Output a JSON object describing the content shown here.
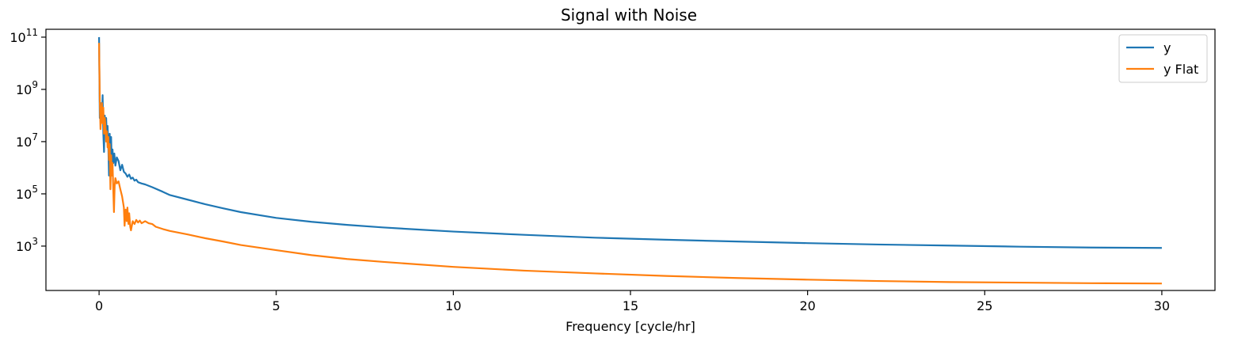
{
  "chart_data": {
    "type": "line",
    "title": "Signal with Noise",
    "xlabel": "Frequency [cycle/hr]",
    "ylabel": "",
    "y_scale": "log",
    "xlim": [
      -1.5,
      31.5
    ],
    "ylim": [
      20,
      200000000000
    ],
    "x_ticks": [
      0,
      5,
      10,
      15,
      20,
      25,
      30
    ],
    "x_tick_labels": [
      "0",
      "5",
      "10",
      "15",
      "20",
      "25",
      "30"
    ],
    "y_ticks": [
      1000,
      100000,
      10000000,
      1000000000,
      100000000000
    ],
    "y_tick_labels": [
      {
        "base": "10",
        "exp": "3"
      },
      {
        "base": "10",
        "exp": "5"
      },
      {
        "base": "10",
        "exp": "7"
      },
      {
        "base": "10",
        "exp": "9"
      },
      {
        "base": "10",
        "exp": "11"
      }
    ],
    "grid": false,
    "legend_position": "top-right",
    "series": [
      {
        "name": "y",
        "color": "#1f77b4",
        "points": [
          [
            0,
            100000000000
          ],
          [
            0.02,
            80000000
          ],
          [
            0.05,
            300000000
          ],
          [
            0.08,
            70000000
          ],
          [
            0.1,
            600000000
          ],
          [
            0.12,
            20000000
          ],
          [
            0.14,
            4000000
          ],
          [
            0.16,
            100000000
          ],
          [
            0.18,
            30000000
          ],
          [
            0.2,
            80000000
          ],
          [
            0.22,
            15000000
          ],
          [
            0.24,
            40000000
          ],
          [
            0.26,
            8000000
          ],
          [
            0.28,
            500000
          ],
          [
            0.3,
            20000000
          ],
          [
            0.32,
            3000000
          ],
          [
            0.34,
            15000000
          ],
          [
            0.36,
            1000000
          ],
          [
            0.38,
            5000000
          ],
          [
            0.4,
            1500000
          ],
          [
            0.43,
            3500000
          ],
          [
            0.46,
            1200000
          ],
          [
            0.5,
            2500000
          ],
          [
            0.55,
            1800000
          ],
          [
            0.6,
            800000
          ],
          [
            0.65,
            1300000
          ],
          [
            0.7,
            700000
          ],
          [
            0.75,
            600000
          ],
          [
            0.8,
            450000
          ],
          [
            0.85,
            550000
          ],
          [
            0.9,
            380000
          ],
          [
            0.95,
            420000
          ],
          [
            1.0,
            320000
          ],
          [
            1.05,
            350000
          ],
          [
            1.1,
            280000
          ],
          [
            1.2,
            250000
          ],
          [
            1.3,
            230000
          ],
          [
            1.5,
            180000
          ],
          [
            1.8,
            120000
          ],
          [
            2.0,
            90000
          ],
          [
            2.5,
            60000
          ],
          [
            3.0,
            40000
          ],
          [
            3.5,
            28000
          ],
          [
            4.0,
            20000
          ],
          [
            5.0,
            12000
          ],
          [
            6.0,
            8500
          ],
          [
            7.0,
            6500
          ],
          [
            8.0,
            5200
          ],
          [
            9.0,
            4300
          ],
          [
            10.0,
            3600
          ],
          [
            12.0,
            2700
          ],
          [
            14.0,
            2100
          ],
          [
            16.0,
            1750
          ],
          [
            18.0,
            1500
          ],
          [
            20.0,
            1300
          ],
          [
            22.0,
            1150
          ],
          [
            24.0,
            1050
          ],
          [
            26.0,
            950
          ],
          [
            28.0,
            880
          ],
          [
            30.0,
            850
          ]
        ]
      },
      {
        "name": "y Flat",
        "color": "#ff7f0e",
        "points": [
          [
            0,
            60000000000
          ],
          [
            0.02,
            400000000
          ],
          [
            0.04,
            30000000
          ],
          [
            0.06,
            100000000
          ],
          [
            0.08,
            300000000
          ],
          [
            0.1,
            50000000
          ],
          [
            0.12,
            200000000
          ],
          [
            0.14,
            20000000
          ],
          [
            0.16,
            80000000
          ],
          [
            0.18,
            40000000
          ],
          [
            0.2,
            10000000
          ],
          [
            0.22,
            25000000
          ],
          [
            0.24,
            6000000
          ],
          [
            0.26,
            15000000
          ],
          [
            0.28,
            2000000
          ],
          [
            0.3,
            8000000
          ],
          [
            0.32,
            150000
          ],
          [
            0.34,
            3000000
          ],
          [
            0.36,
            500000
          ],
          [
            0.38,
            1500000
          ],
          [
            0.4,
            150000
          ],
          [
            0.42,
            20000
          ],
          [
            0.44,
            200000
          ],
          [
            0.46,
            400000
          ],
          [
            0.5,
            250000
          ],
          [
            0.55,
            300000
          ],
          [
            0.6,
            150000
          ],
          [
            0.65,
            80000
          ],
          [
            0.7,
            30000
          ],
          [
            0.72,
            6000
          ],
          [
            0.75,
            25000
          ],
          [
            0.78,
            9000
          ],
          [
            0.8,
            30000
          ],
          [
            0.83,
            7000
          ],
          [
            0.85,
            18000
          ],
          [
            0.88,
            5500
          ],
          [
            0.9,
            4000
          ],
          [
            0.95,
            9000
          ],
          [
            1.0,
            7000
          ],
          [
            1.05,
            10000
          ],
          [
            1.1,
            8000
          ],
          [
            1.15,
            9500
          ],
          [
            1.2,
            7500
          ],
          [
            1.3,
            9000
          ],
          [
            1.4,
            7500
          ],
          [
            1.5,
            7000
          ],
          [
            1.6,
            5500
          ],
          [
            1.8,
            4500
          ],
          [
            2.0,
            3800
          ],
          [
            2.5,
            2800
          ],
          [
            3.0,
            2000
          ],
          [
            3.5,
            1500
          ],
          [
            4.0,
            1100
          ],
          [
            5.0,
            700
          ],
          [
            6.0,
            450
          ],
          [
            7.0,
            320
          ],
          [
            8.0,
            250
          ],
          [
            10.0,
            160
          ],
          [
            12.0,
            115
          ],
          [
            14.0,
            90
          ],
          [
            16.0,
            72
          ],
          [
            18.0,
            60
          ],
          [
            20.0,
            52
          ],
          [
            22.0,
            46
          ],
          [
            24.0,
            42
          ],
          [
            26.0,
            40
          ],
          [
            28.0,
            38
          ],
          [
            30.0,
            37
          ]
        ]
      }
    ]
  }
}
